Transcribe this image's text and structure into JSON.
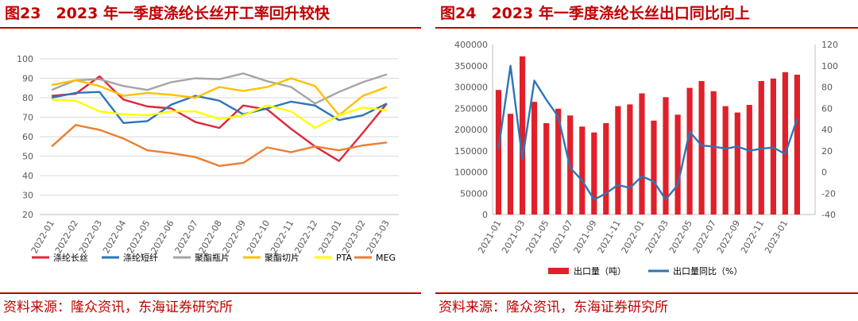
{
  "left": {
    "title": "图23　2023 年一季度涤纶长丝开工率回升较快",
    "source": "资料来源：隆众资讯，东海证券研究所"
  },
  "right": {
    "title": "图24　2023 年一季度涤纶长丝出口同比向上",
    "source": "资料来源：隆众资讯，东海证券研究所"
  },
  "chart_data": [
    {
      "type": "line",
      "title": "2023 年一季度涤纶长丝开工率回升较快",
      "ylim": [
        20,
        100
      ],
      "yticks": [
        20,
        30,
        40,
        50,
        60,
        70,
        80,
        90,
        100
      ],
      "grid": true,
      "legend_position": "bottom",
      "categories": [
        "2022-01",
        "2022-02",
        "2022-03",
        "2022-04",
        "2022-05",
        "2022-06",
        "2022-07",
        "2022-08",
        "2022-09",
        "2022-10",
        "2022-11",
        "2022-12",
        "2023-01",
        "2023-02",
        "2023-03"
      ],
      "series": [
        {
          "name": "涤纶长丝",
          "color": "#e0263a",
          "values": [
            81,
            82,
            91,
            79,
            75.5,
            74.5,
            67.5,
            64.5,
            76,
            74,
            64,
            55,
            47.5,
            62,
            77
          ]
        },
        {
          "name": "涤纶短纤",
          "color": "#2e75b6",
          "values": [
            80,
            82.5,
            83,
            67,
            68,
            76.5,
            81,
            78.5,
            71.5,
            74.5,
            78,
            76,
            68.5,
            71,
            77
          ]
        },
        {
          "name": "聚酯瓶片",
          "color": "#a5a5a5",
          "values": [
            84,
            89,
            89.5,
            86,
            84,
            88,
            90,
            89.5,
            92.5,
            88.5,
            85.5,
            77,
            83,
            88,
            92
          ]
        },
        {
          "name": "聚酯切片",
          "color": "#ffc000",
          "values": [
            86.5,
            89,
            86,
            81,
            82.5,
            81.5,
            80,
            85.5,
            83.5,
            85.5,
            90,
            86,
            71,
            81,
            85.5
          ]
        },
        {
          "name": "PTA",
          "color": "#ffff00",
          "values": [
            79,
            78.5,
            73,
            71.5,
            71,
            73,
            73,
            69,
            71,
            76,
            73,
            64.5,
            71,
            75,
            73.5
          ]
        },
        {
          "name": "MEG",
          "color": "#ed7d31",
          "values": [
            55,
            66,
            63.5,
            59,
            53,
            51.5,
            49.5,
            45,
            46.5,
            54.5,
            52,
            55,
            53,
            55.5,
            57
          ]
        }
      ]
    },
    {
      "type": "bar+line",
      "title": "2023 年一季度涤纶长丝出口同比向上",
      "ylim_left": [
        0,
        400000
      ],
      "yticks_left": [
        0,
        50000,
        100000,
        150000,
        200000,
        250000,
        300000,
        350000,
        400000
      ],
      "ylim_right": [
        -40,
        120
      ],
      "yticks_right": [
        -40,
        -20,
        0,
        20,
        40,
        60,
        80,
        100,
        120
      ],
      "grid": false,
      "legend_position": "bottom",
      "categories": [
        "2021-01",
        "2021-02",
        "2021-03",
        "2021-04",
        "2021-05",
        "2021-06",
        "2021-07",
        "2021-08",
        "2021-09",
        "2021-10",
        "2021-11",
        "2021-12",
        "2022-01",
        "2022-02",
        "2022-03",
        "2022-04",
        "2022-05",
        "2022-06",
        "2022-07",
        "2022-08",
        "2022-09",
        "2022-10",
        "2022-11",
        "2022-12",
        "2023-01",
        "2023-02",
        "2023-03"
      ],
      "x_tick_labels": [
        "2021-01",
        "2021-03",
        "2021-05",
        "2021-07",
        "2021-09",
        "2021-11",
        "2022-01",
        "2022-03",
        "2022-05",
        "2022-07",
        "2022-09",
        "2022-11",
        "2023-01"
      ],
      "series": [
        {
          "name": "出口量（吨）",
          "type": "bar",
          "axis": "left",
          "color": "#e0202a",
          "values": [
            293000,
            237000,
            372000,
            265000,
            215000,
            249000,
            233000,
            207000,
            193000,
            215000,
            255000,
            259000,
            285000,
            221000,
            276000,
            235000,
            298000,
            314000,
            290000,
            255000,
            240000,
            258000,
            314000,
            320000,
            335000,
            329000,
            null
          ]
        },
        {
          "name": "出口量同比（%）",
          "type": "line",
          "axis": "right",
          "color": "#2e75b6",
          "values": [
            22,
            100,
            12,
            86,
            68,
            52,
            4,
            -8,
            -26,
            -20,
            -12,
            -15,
            -4,
            -9,
            -26,
            -12,
            38,
            25,
            24,
            22,
            24,
            20,
            22,
            23,
            17,
            50,
            null
          ]
        }
      ]
    }
  ]
}
